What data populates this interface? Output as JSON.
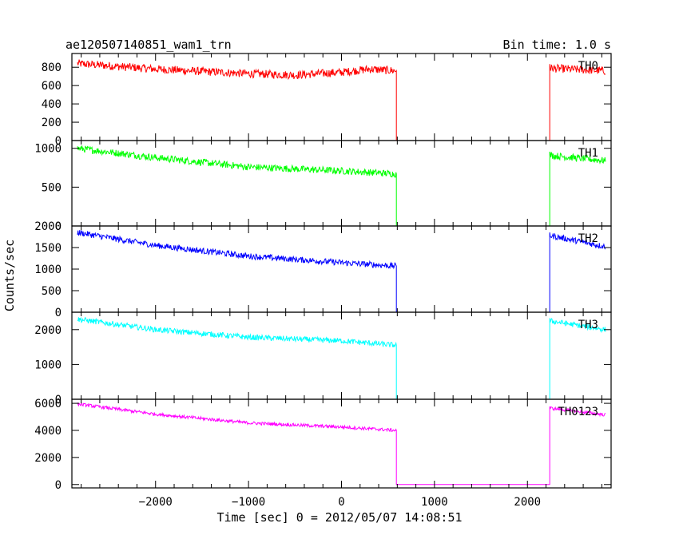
{
  "header": {
    "left_title": "ae120507140851_wam1_trn",
    "right_title": "Bin time: 1.0 s"
  },
  "chart_data": {
    "type": "line",
    "xlabel": "Time [sec] 0 = 2012/05/07 14:08:51",
    "ylabel": "Counts/sec",
    "xlim": [
      -2900,
      2900
    ],
    "x_ticks": [
      -2000,
      -1000,
      0,
      1000,
      2000
    ],
    "x_tick_labels": [
      "−2000",
      "−1000",
      "0",
      "1000",
      "2000"
    ],
    "gap": {
      "start": 590,
      "end": 2240,
      "level": 0
    },
    "grid": false,
    "panels": [
      {
        "name": "TH0",
        "color": "#ff0000",
        "ylim": [
          0,
          950
        ],
        "y_ticks": [
          0,
          200,
          400,
          600,
          800
        ],
        "y_tick_labels": [
          "0",
          "200",
          "400",
          "600",
          "800"
        ],
        "noise_amplitude": 45,
        "profile": [
          [
            -2840,
            840
          ],
          [
            -2000,
            780
          ],
          [
            -1000,
            730
          ],
          [
            -500,
            715
          ],
          [
            0,
            745
          ],
          [
            300,
            780
          ],
          [
            590,
            760
          ],
          [
            2240,
            790
          ],
          [
            2840,
            760
          ]
        ]
      },
      {
        "name": "TH1",
        "color": "#00ff00",
        "ylim": [
          0,
          1100
        ],
        "y_ticks": [
          0,
          500,
          1000
        ],
        "y_tick_labels": [
          "0",
          "500",
          "1000"
        ],
        "noise_amplitude": 45,
        "profile": [
          [
            -2840,
            1000
          ],
          [
            -2000,
            880
          ],
          [
            -1000,
            760
          ],
          [
            0,
            710
          ],
          [
            590,
            670
          ],
          [
            2240,
            910
          ],
          [
            2840,
            840
          ]
        ]
      },
      {
        "name": "TH2",
        "color": "#0000ff",
        "ylim": [
          0,
          2000
        ],
        "y_ticks": [
          0,
          500,
          1000,
          1500,
          2000
        ],
        "y_tick_labels": [
          "0",
          "500",
          "1000",
          "1500",
          "2000"
        ],
        "noise_amplitude": 70,
        "profile": [
          [
            -2840,
            1850
          ],
          [
            -2000,
            1550
          ],
          [
            -1000,
            1300
          ],
          [
            0,
            1150
          ],
          [
            590,
            1070
          ],
          [
            2240,
            1780
          ],
          [
            2840,
            1520
          ]
        ]
      },
      {
        "name": "TH3",
        "color": "#00ffff",
        "ylim": [
          0,
          2500
        ],
        "y_ticks": [
          0,
          1000,
          2000
        ],
        "y_tick_labels": [
          "0",
          "1000",
          "2000"
        ],
        "noise_amplitude": 80,
        "profile": [
          [
            -2840,
            2300
          ],
          [
            -2000,
            2000
          ],
          [
            -1000,
            1780
          ],
          [
            0,
            1680
          ],
          [
            590,
            1550
          ],
          [
            2240,
            2250
          ],
          [
            2840,
            2000
          ]
        ]
      },
      {
        "name": "TH0123",
        "color": "#ff00ff",
        "ylim": [
          -250,
          6300
        ],
        "y_ticks": [
          0,
          2000,
          4000,
          6000
        ],
        "y_tick_labels": [
          "0",
          "2000",
          "4000",
          "6000"
        ],
        "noise_amplitude": 120,
        "profile": [
          [
            -2840,
            5950
          ],
          [
            -2000,
            5200
          ],
          [
            -1000,
            4550
          ],
          [
            0,
            4250
          ],
          [
            590,
            4000
          ],
          [
            2240,
            5650
          ],
          [
            2840,
            5150
          ]
        ]
      }
    ]
  }
}
